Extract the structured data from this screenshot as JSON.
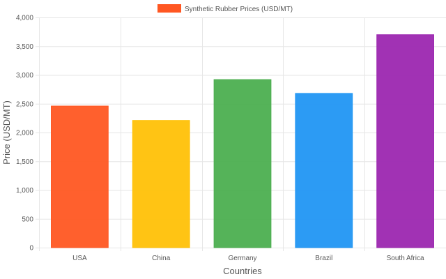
{
  "chart_data": {
    "type": "bar",
    "categories": [
      "USA",
      "China",
      "Germany",
      "Brazil",
      "South Africa"
    ],
    "series": [
      {
        "name": "Synthetic Rubber Prices (USD/MT)",
        "values": [
          2460,
          2210,
          2920,
          2680,
          3700
        ]
      }
    ],
    "bar_colors": [
      "#ff5722",
      "#ffc107",
      "#4caf50",
      "#2196f3",
      "#9c27b0"
    ],
    "legend_color": "#ff5722",
    "grid_color": "#e6e6e6",
    "legend_label": "Synthetic Rubber Prices (USD/MT)",
    "legend_position": "top-center",
    "xlabel": "Countries",
    "ylabel": "Price (USD/MT)",
    "ylim": [
      0,
      4000
    ],
    "yticks": [
      0,
      500,
      1000,
      1500,
      2000,
      2500,
      3000,
      3500,
      4000
    ],
    "ytick_labels": [
      "0",
      "500",
      "1,000",
      "1,500",
      "2,000",
      "2,500",
      "3,000",
      "3,500",
      "4,000"
    ],
    "grid": true
  }
}
